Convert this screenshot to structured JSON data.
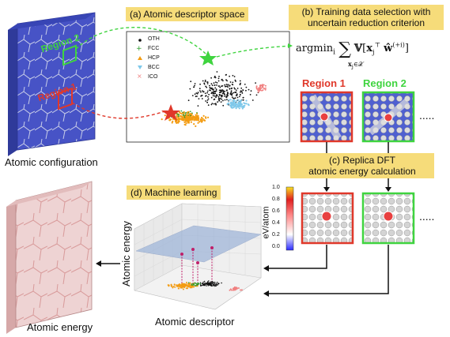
{
  "panels": {
    "a_title": "(a) Atomic descriptor space",
    "b_title_line1": "(b) Training data selection with",
    "b_title_line2": "uncertain reduction criterion",
    "c_title_line1": "(c) Replica DFT",
    "c_title_line2": "atomic energy calculation",
    "d_title": "(d) Machine learning"
  },
  "labels": {
    "atomic_configuration": "Atomic configuration",
    "atomic_energy": "Atomic energy",
    "region1": "Region 1",
    "region2": "Region 2",
    "region1_on_slab": "Region 1",
    "region2_on_slab": "Region 2",
    "dots": ".....",
    "dots2": ".....",
    "formula_argmin": "argmin",
    "formula_sub_i": "i",
    "formula_sum_sub": "x",
    "colorbar_unit": "eV/atom",
    "axis_vertical": "Atomic energy",
    "axis_horizontal": "Atomic descriptor"
  },
  "legend": [
    {
      "name": "OTH",
      "color": "#111111",
      "marker": "dot"
    },
    {
      "name": "FCC",
      "color": "#2a9a2a",
      "marker": "plus"
    },
    {
      "name": "HCP",
      "color": "#f39c12",
      "marker": "triangle"
    },
    {
      "name": "BCC",
      "color": "#7ec8ea",
      "marker": "triangle-down"
    },
    {
      "name": "ICO",
      "color": "#f08080",
      "marker": "x"
    }
  ],
  "colorbar_ticks": [
    "1.0",
    "0.8",
    "0.6",
    "0.4",
    "0.2",
    "0.0"
  ],
  "colors": {
    "label_bg": "#f6dc7a",
    "region1": "#e0382a",
    "region2": "#3fd43f",
    "slab_blue": "#4455c8",
    "slab_energy": "#e8c8c8",
    "hcp": "#f39c12",
    "bcc": "#7ec8ea",
    "ico": "#f08080"
  }
}
